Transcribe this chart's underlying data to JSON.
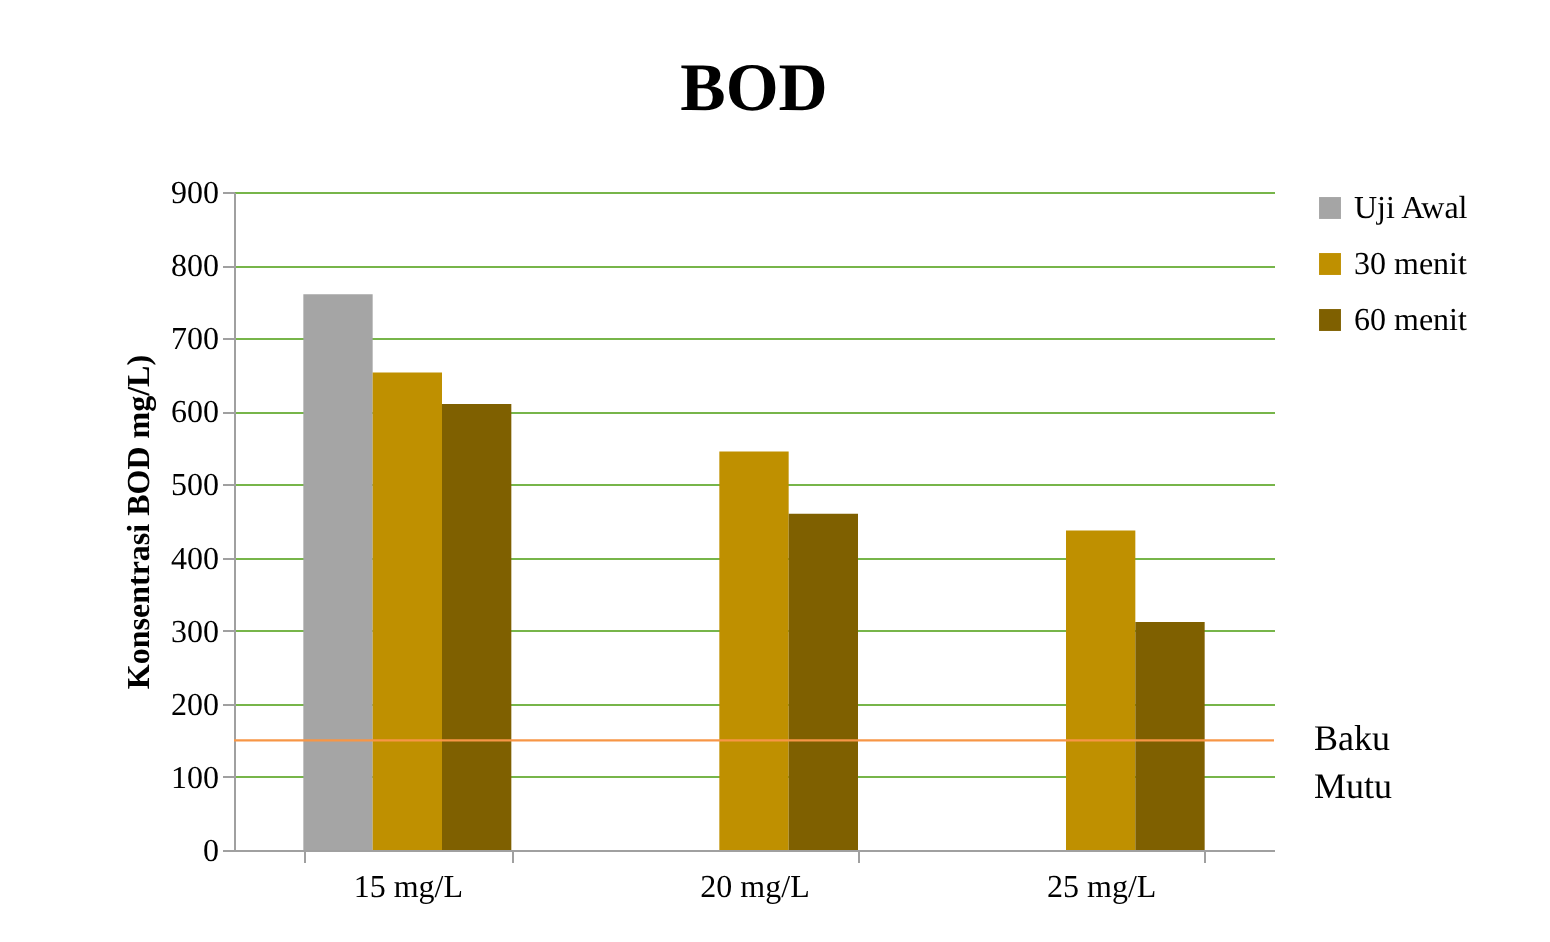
{
  "chart_data": {
    "type": "bar",
    "title": "BOD",
    "ylabel": "Konsentrasi BOD mg/L)",
    "categories": [
      "15 mg/L",
      "20 mg/L",
      "25 mg/L"
    ],
    "series": [
      {
        "name": "Uji Awal",
        "color": "#a5a5a5",
        "values": [
          760,
          null,
          null
        ]
      },
      {
        "name": "30 menit",
        "color": "#bf9000",
        "values": [
          653,
          545,
          437
        ]
      },
      {
        "name": "60 menit",
        "color": "#7f6000",
        "values": [
          610,
          460,
          312
        ]
      }
    ],
    "ylim": [
      0,
      900
    ],
    "yticks": [
      0,
      100,
      200,
      300,
      400,
      500,
      600,
      700,
      800,
      900
    ],
    "grid": "y",
    "legend": "right",
    "ref_lines": [
      {
        "axis": "y",
        "value": 150,
        "label": "Baku\nMutu",
        "color": "#f79646"
      }
    ]
  }
}
